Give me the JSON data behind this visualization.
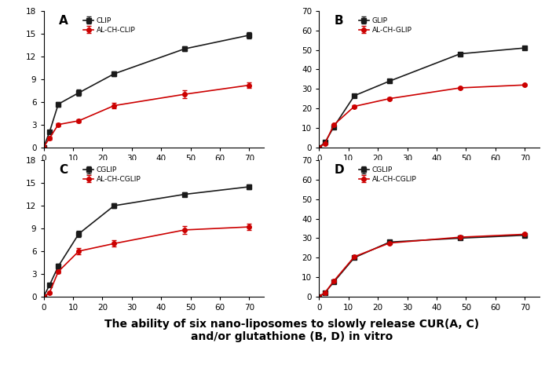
{
  "x": [
    0,
    2,
    5,
    12,
    24,
    48,
    70
  ],
  "A_black": [
    0,
    2.0,
    5.7,
    7.2,
    9.7,
    13.0,
    14.8
  ],
  "A_black_err": [
    0,
    0.2,
    0.3,
    0.4,
    0.3,
    0.3,
    0.4
  ],
  "A_red": [
    0,
    1.2,
    3.0,
    3.5,
    5.5,
    7.0,
    8.2
  ],
  "A_red_err": [
    0,
    0.2,
    0.2,
    0.2,
    0.4,
    0.5,
    0.4
  ],
  "B_black": [
    0,
    2.5,
    10.5,
    26.5,
    34.0,
    48.0,
    51.0
  ],
  "B_black_err": [
    0,
    0.3,
    0.5,
    0.5,
    0.8,
    0.7,
    0.6
  ],
  "B_red": [
    0,
    2.0,
    11.5,
    21.0,
    25.0,
    30.5,
    32.0
  ],
  "B_red_err": [
    0,
    0.3,
    0.5,
    0.5,
    0.5,
    0.5,
    0.5
  ],
  "C_black": [
    0,
    1.5,
    4.0,
    8.3,
    12.0,
    13.5,
    14.5
  ],
  "C_black_err": [
    0,
    0.2,
    0.3,
    0.4,
    0.3,
    0.3,
    0.3
  ],
  "C_red": [
    0,
    0.5,
    3.3,
    6.0,
    7.0,
    8.8,
    9.2
  ],
  "C_red_err": [
    0,
    0.15,
    0.2,
    0.4,
    0.4,
    0.5,
    0.4
  ],
  "D_black": [
    0,
    2.0,
    7.5,
    20.0,
    28.0,
    30.0,
    31.5
  ],
  "D_black_err": [
    0,
    0.3,
    0.4,
    0.5,
    0.6,
    0.5,
    0.5
  ],
  "D_red": [
    0,
    2.0,
    8.0,
    20.5,
    27.5,
    30.5,
    32.0
  ],
  "D_red_err": [
    0,
    0.3,
    0.4,
    0.5,
    0.5,
    0.5,
    0.5
  ],
  "label_A_black": "CLIP",
  "label_A_red": "AL-CH-CLIP",
  "label_B_black": "GLIP",
  "label_B_red": "AL-CH-GLIP",
  "label_C_black": "CGLIP",
  "label_C_red": "AL-CH-CGLIP",
  "label_D_black": "CGLIP",
  "label_D_red": "AL-CH-CGLIP",
  "panel_labels": [
    "A",
    "B",
    "C",
    "D"
  ],
  "ylim_AB": [
    0,
    70
  ],
  "ylim_CD": [
    0,
    18
  ],
  "xlim": [
    0,
    75
  ],
  "yticks_top": [
    0,
    10,
    20,
    30,
    40,
    50,
    60,
    70
  ],
  "yticks_bottom_left": [
    0,
    3,
    6,
    9,
    12,
    15,
    18
  ],
  "yticks_bottom_right": [
    0,
    10,
    20,
    30,
    40,
    50,
    60,
    70
  ],
  "xticks": [
    0,
    10,
    20,
    30,
    40,
    50,
    60,
    70
  ],
  "black_color": "#1a1a1a",
  "red_color": "#cc0000",
  "bg_color": "#ffffff",
  "caption": "The ability of six nano-liposomes to slowly release CUR(A, C)\nand/or glutathione (B, D) in vitro",
  "caption_fontsize": 10
}
